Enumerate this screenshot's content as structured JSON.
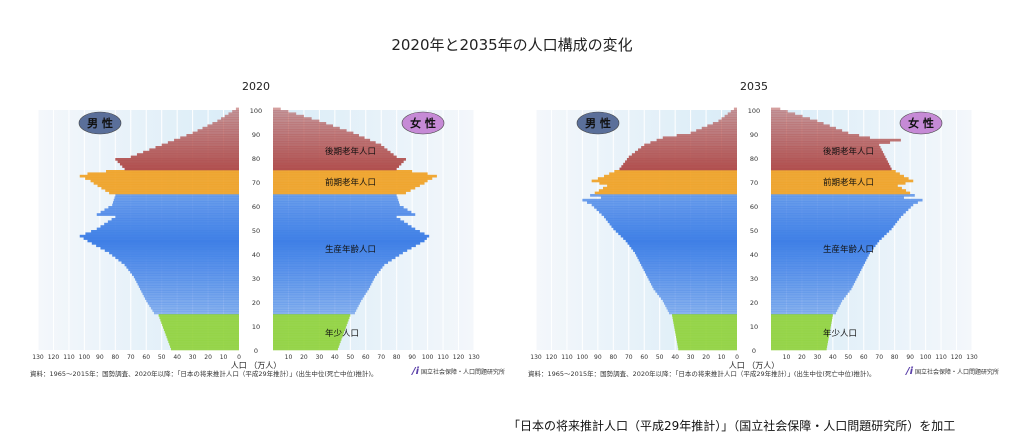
{
  "title": "2020年と2035年の人口構成の変化",
  "footer": "「日本の将来推計人口（平成29年推計）」（国立社会保障・人口問題研究所）を加工",
  "colors": {
    "elderly_late": "#b0504f",
    "elderly_early": "#f0a020",
    "working": "#3f7fe6",
    "child": "#8fd23a",
    "male_badge": "#5a6f9a",
    "female_badge": "#c68ad6"
  },
  "chart_data": [
    {
      "type": "population-pyramid",
      "title": "2020",
      "male_label": "男 性",
      "female_label": "女 性",
      "xlabel": "人口 （万人）",
      "x_ticks": [
        "130",
        "120",
        "110",
        "100",
        "90",
        "80",
        "70",
        "60",
        "50",
        "40",
        "30",
        "20",
        "10",
        "0",
        "10",
        "20",
        "30",
        "40",
        "50",
        "60",
        "70",
        "80",
        "90",
        "100",
        "110",
        "120",
        "130"
      ],
      "y_ticks": [
        "0",
        "10",
        "20",
        "30",
        "40",
        "50",
        "60",
        "70",
        "80",
        "90",
        "100"
      ],
      "xlim": [
        0,
        130
      ],
      "ylim": [
        0,
        100
      ],
      "grid": true,
      "age_group_labels": [
        "後期老年人口",
        "前期老年人口",
        "生産年齢人口",
        "年少人口"
      ],
      "source": "資料：1965～2015年：国勢調査、2020年以降：「日本の将来推計人口（平成29年推計）」(出生中位(死亡中位)推計)。",
      "org": "国立社会保障・人口問題研究所",
      "ages": [
        0,
        7,
        14,
        15,
        20,
        25,
        30,
        35,
        40,
        45,
        47,
        50,
        55,
        56,
        60,
        64,
        65,
        69,
        70,
        72,
        73,
        75,
        79,
        80,
        85,
        90,
        95,
        100
      ],
      "male": [
        44,
        48,
        52,
        55,
        60,
        64,
        68,
        74,
        84,
        98,
        103,
        92,
        80,
        92,
        82,
        80,
        84,
        94,
        96,
        103,
        98,
        74,
        80,
        70,
        50,
        30,
        14,
        2
      ],
      "female": [
        42,
        46,
        50,
        53,
        57,
        62,
        66,
        72,
        84,
        98,
        101,
        92,
        80,
        92,
        82,
        80,
        86,
        98,
        100,
        106,
        100,
        80,
        86,
        80,
        70,
        52,
        30,
        5
      ]
    },
    {
      "type": "population-pyramid",
      "title": "2035",
      "male_label": "男 性",
      "female_label": "女 性",
      "xlabel": "人口 （万人）",
      "x_ticks": [
        "130",
        "120",
        "110",
        "100",
        "90",
        "80",
        "70",
        "60",
        "50",
        "40",
        "30",
        "20",
        "10",
        "0",
        "10",
        "20",
        "30",
        "40",
        "50",
        "60",
        "70",
        "80",
        "90",
        "100",
        "110",
        "120",
        "130"
      ],
      "y_ticks": [
        "0",
        "10",
        "20",
        "30",
        "40",
        "50",
        "60",
        "70",
        "80",
        "90",
        "100"
      ],
      "xlim": [
        0,
        130
      ],
      "ylim": [
        0,
        100
      ],
      "grid": true,
      "age_group_labels": [
        "後期老年人口",
        "前期老年人口",
        "生産年齢人口",
        "年少人口"
      ],
      "source": "資料：1965～2015年：国勢調査、2020年以降：「日本の将来推計人口（平成29年推計）」(出生中位(死亡中位)推計)。",
      "org": "国立社会保障・人口問題研究所",
      "ages": [
        0,
        14,
        15,
        20,
        25,
        30,
        35,
        40,
        45,
        50,
        55,
        60,
        62,
        63,
        64,
        65,
        68,
        70,
        72,
        75,
        80,
        85,
        87,
        88,
        90,
        95,
        100
      ],
      "male": [
        38,
        42,
        44,
        48,
        54,
        58,
        62,
        66,
        72,
        80,
        86,
        94,
        100,
        88,
        95,
        92,
        84,
        94,
        86,
        76,
        70,
        60,
        52,
        48,
        30,
        12,
        2
      ],
      "female": [
        36,
        40,
        42,
        46,
        52,
        56,
        60,
        64,
        70,
        78,
        84,
        92,
        98,
        86,
        93,
        90,
        82,
        92,
        86,
        78,
        74,
        70,
        84,
        64,
        50,
        30,
        6
      ]
    }
  ]
}
